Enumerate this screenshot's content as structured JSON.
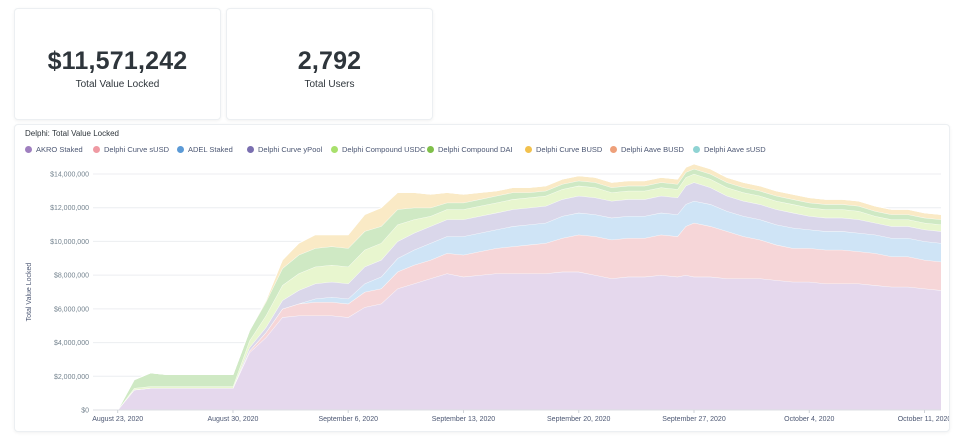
{
  "kpis": [
    {
      "value": "$11,571,242",
      "label": "Total Value Locked"
    },
    {
      "value": "2,792",
      "label": "Total Users"
    }
  ],
  "chart_data": {
    "type": "area",
    "stacked": true,
    "title": "Delphi: Total Value Locked",
    "ylabel": "Total Value Locked",
    "xlabel": "",
    "ylim": [
      0,
      14000000
    ],
    "legend_position": "top-left",
    "grid": true,
    "y_ticks": [
      0,
      2000000,
      4000000,
      6000000,
      8000000,
      10000000,
      12000000,
      14000000
    ],
    "y_tick_labels": [
      "$0",
      "$2,000,000",
      "$4,000,000",
      "$6,000,000",
      "$8,000,000",
      "$10,000,000",
      "$12,000,000",
      "$14,000,000"
    ],
    "x_tick_labels": [
      {
        "day": 0,
        "label": "August 23, 2020"
      },
      {
        "day": 7,
        "label": "August 30, 2020"
      },
      {
        "day": 14,
        "label": "September 6, 2020"
      },
      {
        "day": 21,
        "label": "September 13, 2020"
      },
      {
        "day": 28,
        "label": "September 20, 2020"
      },
      {
        "day": 35,
        "label": "September 27, 2020"
      },
      {
        "day": 42,
        "label": "October 4, 2020"
      },
      {
        "day": 49,
        "label": "October 11, 2020"
      }
    ],
    "x_days": [
      -1.5,
      -1,
      0,
      1,
      2,
      3,
      4,
      5,
      6,
      7,
      8,
      9,
      10,
      11,
      12,
      13,
      14,
      15,
      16,
      17,
      18,
      19,
      20,
      21,
      22,
      23,
      24,
      25,
      26,
      27,
      28,
      29,
      30,
      31,
      32,
      33,
      34,
      34.5,
      35,
      36,
      37,
      38,
      39,
      40,
      41,
      42,
      43,
      44,
      45,
      46,
      47,
      48,
      49,
      50
    ],
    "series": [
      {
        "name": "AKRO Staked",
        "color": "#e5d8ed",
        "values": [
          0,
          0,
          0,
          1200000,
          1300000,
          1300000,
          1300000,
          1300000,
          1300000,
          1300000,
          3400000,
          4300000,
          5500000,
          5600000,
          5600000,
          5600000,
          5500000,
          6100000,
          6300000,
          7200000,
          7500000,
          7800000,
          8100000,
          7900000,
          8000000,
          8100000,
          8100000,
          8100000,
          8100000,
          8200000,
          8200000,
          8000000,
          7800000,
          7900000,
          7900000,
          8000000,
          7900000,
          8000000,
          7900000,
          7900000,
          7800000,
          7800000,
          7800000,
          7700000,
          7600000,
          7600000,
          7500000,
          7500000,
          7500000,
          7400000,
          7300000,
          7300000,
          7200000,
          7100000
        ]
      },
      {
        "name": "Delphi Curve sUSD",
        "color": "#f6d6d8",
        "values": [
          0,
          0,
          0,
          0,
          0,
          0,
          0,
          0,
          0,
          0,
          100000,
          300000,
          500000,
          700000,
          800000,
          800000,
          800000,
          900000,
          900000,
          1000000,
          1100000,
          1100000,
          1200000,
          1300000,
          1400000,
          1500000,
          1600000,
          1700000,
          1800000,
          2000000,
          2200000,
          2300000,
          2300000,
          2300000,
          2300000,
          2400000,
          2400000,
          2900000,
          3200000,
          3000000,
          2800000,
          2500000,
          2300000,
          2100000,
          2000000,
          2000000,
          2000000,
          2000000,
          1900000,
          1900000,
          1800000,
          1800000,
          1700000,
          1700000
        ]
      },
      {
        "name": "ADEL Staked",
        "color": "#cfe4f6",
        "values": [
          0,
          0,
          0,
          0,
          0,
          0,
          0,
          0,
          0,
          0,
          0,
          0,
          0,
          0,
          200000,
          300000,
          300000,
          500000,
          700000,
          800000,
          900000,
          1000000,
          1000000,
          1100000,
          1100000,
          1100000,
          1200000,
          1200000,
          1200000,
          1300000,
          1300000,
          1300000,
          1300000,
          1300000,
          1300000,
          1300000,
          1300000,
          1300000,
          1300000,
          1300000,
          1200000,
          1200000,
          1200000,
          1200000,
          1200000,
          1100000,
          1100000,
          1100000,
          1100000,
          1100000,
          1100000,
          1100000,
          1100000,
          1100000
        ]
      },
      {
        "name": "Delphi Curve yPool",
        "color": "#dad7ea",
        "values": [
          0,
          0,
          0,
          0,
          0,
          0,
          0,
          0,
          0,
          0,
          200000,
          300000,
          500000,
          800000,
          900000,
          900000,
          900000,
          1000000,
          1000000,
          1000000,
          1000000,
          1000000,
          1000000,
          1000000,
          1000000,
          1000000,
          1000000,
          1000000,
          1000000,
          1000000,
          1000000,
          1000000,
          1000000,
          1000000,
          1000000,
          1000000,
          1000000,
          1100000,
          1100000,
          1000000,
          900000,
          900000,
          900000,
          900000,
          900000,
          800000,
          800000,
          800000,
          800000,
          700000,
          700000,
          700000,
          700000,
          700000
        ]
      },
      {
        "name": "Delphi Compound USDC",
        "color": "#e8f6cf",
        "values": [
          0,
          0,
          0,
          100000,
          100000,
          100000,
          100000,
          100000,
          100000,
          100000,
          400000,
          700000,
          900000,
          1000000,
          1000000,
          1000000,
          1000000,
          1000000,
          1000000,
          1000000,
          800000,
          600000,
          600000,
          600000,
          600000,
          600000,
          600000,
          600000,
          600000,
          600000,
          600000,
          600000,
          500000,
          500000,
          500000,
          500000,
          500000,
          500000,
          500000,
          500000,
          500000,
          500000,
          500000,
          500000,
          500000,
          500000,
          500000,
          500000,
          500000,
          400000,
          400000,
          400000,
          400000,
          400000
        ]
      },
      {
        "name": "Delphi Compound DAI",
        "color": "#cfe9c4",
        "values": [
          0,
          0,
          0,
          500000,
          800000,
          700000,
          700000,
          700000,
          700000,
          700000,
          600000,
          800000,
          1000000,
          1100000,
          1100000,
          1100000,
          1100000,
          1100000,
          1000000,
          900000,
          700000,
          500000,
          400000,
          400000,
          400000,
          400000,
          400000,
          300000,
          300000,
          300000,
          300000,
          300000,
          300000,
          300000,
          300000,
          300000,
          300000,
          300000,
          300000,
          300000,
          300000,
          300000,
          300000,
          300000,
          300000,
          300000,
          300000,
          300000,
          300000,
          300000,
          300000,
          300000,
          300000,
          300000
        ]
      },
      {
        "name": "Delphi Curve BUSD",
        "color": "#faeac6",
        "values": [
          0,
          0,
          0,
          0,
          0,
          0,
          0,
          0,
          0,
          0,
          0,
          100000,
          500000,
          700000,
          800000,
          700000,
          800000,
          1000000,
          1100000,
          1000000,
          900000,
          800000,
          600000,
          500000,
          400000,
          300000,
          300000,
          300000,
          300000,
          300000,
          300000,
          300000,
          300000,
          300000,
          300000,
          300000,
          300000,
          300000,
          300000,
          300000,
          300000,
          300000,
          300000,
          300000,
          300000,
          300000,
          300000,
          300000,
          300000,
          300000,
          300000,
          300000,
          300000,
          300000
        ]
      },
      {
        "name": "Delphi Aave BUSD",
        "color": "#f6d9c6",
        "values": [
          0,
          0,
          0,
          0,
          0,
          0,
          0,
          0,
          0,
          0,
          0,
          0,
          0,
          0,
          0,
          0,
          0,
          0,
          0,
          0,
          0,
          0,
          0,
          0,
          0,
          0,
          0,
          0,
          0,
          0,
          0,
          0,
          0,
          0,
          0,
          0,
          0,
          0,
          0,
          0,
          0,
          0,
          0,
          0,
          0,
          0,
          0,
          0,
          0,
          0,
          0,
          0,
          0,
          0
        ]
      },
      {
        "name": "Delphi Aave sUSD",
        "color": "#cdeeee",
        "values": [
          0,
          0,
          0,
          0,
          0,
          0,
          0,
          0,
          0,
          0,
          0,
          0,
          0,
          0,
          0,
          0,
          0,
          0,
          0,
          0,
          0,
          0,
          0,
          0,
          0,
          0,
          0,
          0,
          0,
          0,
          0,
          0,
          0,
          0,
          0,
          0,
          0,
          0,
          0,
          0,
          0,
          0,
          0,
          0,
          0,
          0,
          0,
          0,
          0,
          0,
          0,
          0,
          0,
          0
        ]
      }
    ],
    "legend_colors": [
      "#9f7fbf",
      "#ef9aa3",
      "#5b9ad6",
      "#7a6fb0",
      "#a8e06c",
      "#7fbf4a",
      "#f2c14e",
      "#eea07a",
      "#8fd3d3"
    ]
  }
}
